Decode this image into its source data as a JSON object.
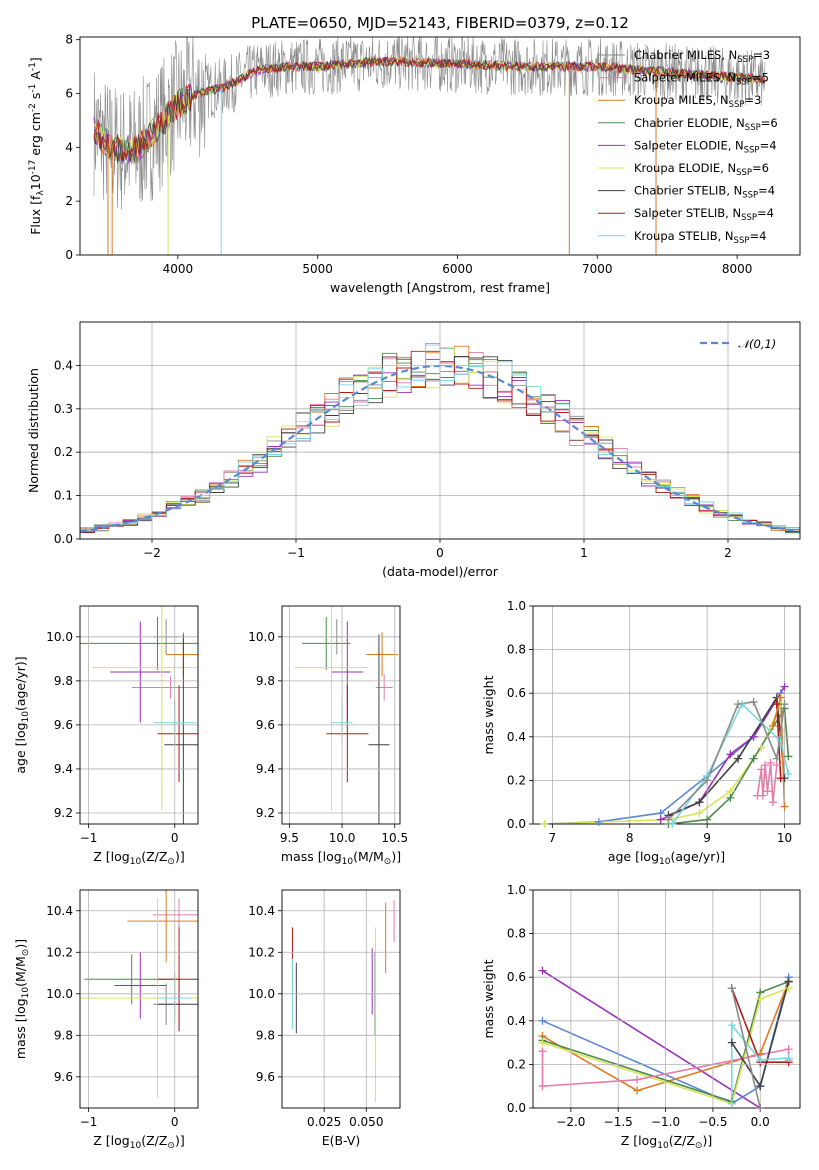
{
  "figure": {
    "title": "PLATE=0650, MJD=52143, FIBERID=0379, z=0.12"
  },
  "colors": {
    "chabrier_miles": "#8a8a8a",
    "salpeter_miles": "#e87ba8",
    "kroupa_miles": "#e07a1f",
    "chabrier_elodie": "#4c8a4c",
    "salpeter_elodie": "#9b30b8",
    "kroupa_elodie": "#d8e55a",
    "chabrier_stelib": "#404040",
    "salpeter_stelib": "#b01a1a",
    "kroupa_stelib": "#7ad8e0",
    "gaussian": "#5b87d8"
  },
  "chart_data": [
    {
      "id": "spectrum",
      "type": "line",
      "xlabel": "wavelength [Angstrom, rest frame]",
      "ylabel": "Flux [f$_\\lambda$10$^{-17}$ erg cm$^{-2}$ s$^{-1}$ A$^{-1}$]",
      "xlim": [
        3300,
        8450
      ],
      "ylim": [
        0,
        8.1
      ],
      "xticks": [
        "4000",
        "5000",
        "6000",
        "7000",
        "8000"
      ],
      "yticks": [
        "0",
        "2",
        "4",
        "6",
        "8"
      ],
      "legend_position": "right",
      "legend": [
        {
          "key": "chabrier_miles",
          "text": "Chabrier MILES, N",
          "sub": "SSP",
          "tail": "=3"
        },
        {
          "key": "salpeter_miles",
          "text": "Salpeter MILES, N",
          "sub": "SSP",
          "tail": "=5"
        },
        {
          "key": "kroupa_miles",
          "text": "Kroupa MILES, N",
          "sub": "SSP",
          "tail": "=3"
        },
        {
          "key": "chabrier_elodie",
          "text": "Chabrier ELODIE, N",
          "sub": "SSP",
          "tail": "=6"
        },
        {
          "key": "salpeter_elodie",
          "text": "Salpeter ELODIE, N",
          "sub": "SSP",
          "tail": "=4"
        },
        {
          "key": "kroupa_elodie",
          "text": "Kroupa ELODIE, N",
          "sub": "SSP",
          "tail": "=6"
        },
        {
          "key": "chabrier_stelib",
          "text": "Chabrier STELIB, N",
          "sub": "SSP",
          "tail": "=4"
        },
        {
          "key": "salpeter_stelib",
          "text": "Salpeter STELIB, N",
          "sub": "SSP",
          "tail": "=4"
        },
        {
          "key": "kroupa_stelib",
          "text": "Kroupa STELIB, N",
          "sub": "SSP",
          "tail": "=4"
        }
      ],
      "continuum": [
        [
          3400,
          4.7
        ],
        [
          3500,
          4.1
        ],
        [
          3600,
          3.9
        ],
        [
          3700,
          3.9
        ],
        [
          3800,
          4.4
        ],
        [
          3900,
          5.0
        ],
        [
          4000,
          5.6
        ],
        [
          4100,
          5.9
        ],
        [
          4200,
          6.1
        ],
        [
          4300,
          6.2
        ],
        [
          4400,
          6.4
        ],
        [
          4500,
          6.7
        ],
        [
          4600,
          6.9
        ],
        [
          4800,
          7.0
        ],
        [
          5000,
          7.0
        ],
        [
          5200,
          7.1
        ],
        [
          5500,
          7.2
        ],
        [
          6000,
          7.1
        ],
        [
          6500,
          7.0
        ],
        [
          7000,
          7.0
        ],
        [
          7500,
          6.8
        ],
        [
          8000,
          6.6
        ],
        [
          8200,
          6.5
        ]
      ],
      "dips": [
        [
          3500,
          0
        ],
        [
          3530,
          0
        ],
        [
          3930,
          0
        ],
        [
          4310,
          0
        ],
        [
          6800,
          0
        ],
        [
          7420,
          0
        ]
      ]
    },
    {
      "id": "residuals",
      "type": "bar",
      "xlabel": "(data-model)/error",
      "ylabel": "Normed distribution",
      "xlim": [
        -2.5,
        2.5
      ],
      "ylim": [
        0,
        0.5
      ],
      "xticks": [
        "−2",
        "−1",
        "0",
        "1",
        "2"
      ],
      "yticks": [
        "0.0",
        "0.1",
        "0.2",
        "0.3",
        "0.4"
      ],
      "legend_position": "top-right",
      "legend_label": "$\\mathcal{N}(0,1)$",
      "bin_width": 0.1
    },
    {
      "id": "age_vs_Z",
      "type": "scatter",
      "xlabel": "Z [log$_{10}$(Z/Z$_\\odot$)]",
      "ylabel": "age  [log$_{10}$(age/yr)]",
      "xlim": [
        -1.1,
        0.27
      ],
      "ylim": [
        9.15,
        10.14
      ],
      "xticks": [
        "−1",
        "0"
      ],
      "yticks": [
        "9.2",
        "9.4",
        "9.6",
        "9.8",
        "10.0"
      ],
      "points": [
        {
          "key": "chabrier_miles",
          "x": -0.1,
          "y": 10.0,
          "xerr": 0.15,
          "yerr": 0.08
        },
        {
          "key": "salpeter_miles",
          "x": -0.05,
          "y": 9.77,
          "xerr": 0.45,
          "yerr": 0.05
        },
        {
          "key": "kroupa_miles",
          "x": 0.1,
          "y": 9.92,
          "xerr": 0.2,
          "yerr": 0.1
        },
        {
          "key": "chabrier_elodie",
          "x": -0.2,
          "y": 9.97,
          "xerr": 0.95,
          "yerr": 0.12
        },
        {
          "key": "salpeter_elodie",
          "x": -0.4,
          "y": 9.84,
          "xerr": 0.35,
          "yerr": 0.23
        },
        {
          "key": "kroupa_elodie",
          "x": -0.15,
          "y": 9.86,
          "xerr": 0.8,
          "yerr": 0.65
        },
        {
          "key": "chabrier_stelib",
          "x": 0.1,
          "y": 9.51,
          "xerr": 0.22,
          "yerr": 0.5
        },
        {
          "key": "salpeter_stelib",
          "x": 0.05,
          "y": 9.56,
          "xerr": 0.25,
          "yerr": 0.22
        },
        {
          "key": "kroupa_stelib",
          "x": 0.0,
          "y": 9.61,
          "xerr": 0.25,
          "yerr": 0.1
        }
      ]
    },
    {
      "id": "age_vs_mass",
      "type": "scatter",
      "xlabel": "mass [log$_{10}$(M/M$_\\odot$)]",
      "ylabel": "",
      "xlim": [
        9.43,
        10.55
      ],
      "ylim": [
        9.15,
        10.14
      ],
      "xticks": [
        "9.5",
        "10.0",
        "10.5"
      ],
      "yticks": [
        "9.2",
        "9.4",
        "9.6",
        "9.8",
        "10.0"
      ],
      "points": [
        {
          "key": "chabrier_miles",
          "x": 9.95,
          "y": 10.0,
          "xerr": 0.05,
          "yerr": 0.08
        },
        {
          "key": "salpeter_miles",
          "x": 10.4,
          "y": 9.77,
          "xerr": 0.08,
          "yerr": 0.06
        },
        {
          "key": "kroupa_miles",
          "x": 10.38,
          "y": 9.92,
          "xerr": 0.15,
          "yerr": 0.1
        },
        {
          "key": "chabrier_elodie",
          "x": 9.85,
          "y": 9.97,
          "xerr": 0.23,
          "yerr": 0.12
        },
        {
          "key": "salpeter_elodie",
          "x": 10.05,
          "y": 9.84,
          "xerr": 0.15,
          "yerr": 0.23
        },
        {
          "key": "kroupa_elodie",
          "x": 9.9,
          "y": 9.86,
          "xerr": 0.35,
          "yerr": 0.65
        },
        {
          "key": "chabrier_stelib",
          "x": 10.35,
          "y": 9.51,
          "xerr": 0.1,
          "yerr": 0.5
        },
        {
          "key": "salpeter_stelib",
          "x": 10.05,
          "y": 9.56,
          "xerr": 0.2,
          "yerr": 0.22
        },
        {
          "key": "kroupa_stelib",
          "x": 10.0,
          "y": 9.61,
          "xerr": 0.1,
          "yerr": 0.1
        }
      ]
    },
    {
      "id": "mass_weight_vs_age",
      "type": "line",
      "xlabel": "age  [log$_{10}$(age/yr)]",
      "ylabel": "mass weight",
      "xlim": [
        6.75,
        10.2
      ],
      "ylim": [
        0,
        1.0
      ],
      "xticks": [
        "7",
        "8",
        "9",
        "10"
      ],
      "yticks": [
        "0.0",
        "0.2",
        "0.4",
        "0.6",
        "0.8",
        "1.0"
      ],
      "series": [
        {
          "key": "gaussian",
          "x": [
            6.9,
            7.6,
            8.4,
            9.0,
            9.6,
            9.95
          ],
          "y": [
            0.0,
            0.01,
            0.05,
            0.22,
            0.4,
            0.6
          ]
        },
        {
          "key": "kroupa_elodie",
          "x": [
            6.9,
            8.5,
            8.9,
            9.3,
            9.7,
            9.95
          ],
          "y": [
            0.0,
            0.02,
            0.05,
            0.15,
            0.35,
            0.55
          ]
        },
        {
          "key": "salpeter_elodie",
          "x": [
            8.4,
            8.9,
            9.3,
            9.6,
            10.0
          ],
          "y": [
            0.02,
            0.1,
            0.32,
            0.4,
            0.63
          ]
        },
        {
          "key": "chabrier_elodie",
          "x": [
            8.5,
            9.0,
            9.3,
            9.6,
            10.0,
            10.05
          ],
          "y": [
            0.0,
            0.02,
            0.12,
            0.3,
            0.53,
            0.31
          ]
        },
        {
          "key": "chabrier_stelib",
          "x": [
            8.5,
            8.9,
            9.4,
            9.9,
            10.0
          ],
          "y": [
            0.04,
            0.1,
            0.3,
            0.58,
            0.21
          ]
        },
        {
          "key": "salpeter_stelib",
          "x": [
            9.9,
            9.95
          ],
          "y": [
            0.55,
            0.21
          ]
        },
        {
          "key": "kroupa_miles",
          "x": [
            9.85,
            9.95,
            10.0
          ],
          "y": [
            0.45,
            0.58,
            0.08
          ]
        },
        {
          "key": "kroupa_stelib",
          "x": [
            8.55,
            9.0,
            9.45,
            9.95,
            10.05
          ],
          "y": [
            0.0,
            0.22,
            0.55,
            0.38,
            0.23
          ]
        },
        {
          "key": "chabrier_miles",
          "x": [
            8.5,
            9.0,
            9.4,
            9.6,
            9.9,
            10.0
          ],
          "y": [
            0.02,
            0.2,
            0.55,
            0.56,
            0.3,
            0.55
          ]
        },
        {
          "key": "salpeter_miles",
          "x": [
            9.65,
            9.7,
            9.72,
            9.75,
            9.78,
            9.82,
            9.85,
            9.9
          ],
          "y": [
            0.13,
            0.25,
            0.13,
            0.27,
            0.15,
            0.28,
            0.1,
            0.27
          ]
        }
      ]
    },
    {
      "id": "mass_vs_Z",
      "type": "scatter",
      "xlabel": "Z [log$_{10}$(Z/Z$_\\odot$)]",
      "ylabel": "mass [log$_{10}$(M/M$_\\odot$)]",
      "xlim": [
        -1.1,
        0.27
      ],
      "ylim": [
        9.45,
        10.5
      ],
      "xticks": [
        "−1",
        "0"
      ],
      "yticks": [
        "9.6",
        "9.8",
        "10.0",
        "10.2",
        "10.4"
      ],
      "points": [
        {
          "key": "chabrier_miles",
          "x": -0.1,
          "y": 9.95,
          "xerr": 0.15,
          "yerr": 0.1
        },
        {
          "key": "salpeter_miles",
          "x": 0.05,
          "y": 10.38,
          "xerr": 0.3,
          "yerr": 0.08
        },
        {
          "key": "kroupa_miles",
          "x": -0.1,
          "y": 10.35,
          "xerr": 0.45,
          "yerr": 0.2
        },
        {
          "key": "chabrier_elodie",
          "x": -0.5,
          "y": 10.07,
          "xerr": 0.55,
          "yerr": 0.12
        },
        {
          "key": "salpeter_elodie",
          "x": -0.4,
          "y": 10.04,
          "xerr": 0.3,
          "yerr": 0.16
        },
        {
          "key": "kroupa_elodie",
          "x": -0.2,
          "y": 9.98,
          "xerr": 0.9,
          "yerr": 0.48
        },
        {
          "key": "chabrier_stelib",
          "x": 0.05,
          "y": 9.95,
          "xerr": 0.25,
          "yerr": 0.13
        },
        {
          "key": "salpeter_stelib",
          "x": 0.05,
          "y": 10.07,
          "xerr": 0.25,
          "yerr": 0.25
        },
        {
          "key": "kroupa_stelib",
          "x": 0.0,
          "y": 9.98,
          "xerr": 0.2,
          "yerr": 0.12
        }
      ]
    },
    {
      "id": "mass_vs_ebv",
      "type": "scatter",
      "xlabel": "E(B-V)",
      "ylabel": "",
      "xlim": [
        0.0,
        0.07
      ],
      "ylim": [
        9.45,
        10.5
      ],
      "xticks": [
        "0.025",
        "0.050"
      ],
      "yticks": [
        "9.6",
        "9.8",
        "10.0",
        "10.2",
        "10.4"
      ],
      "points": [
        {
          "key": "chabrier_miles",
          "x": 0.0062,
          "y": 9.95,
          "xerr": 0,
          "yerr": 0.1
        },
        {
          "key": "salpeter_miles",
          "x": 0.0665,
          "y": 10.35,
          "xerr": 0,
          "yerr": 0.1
        },
        {
          "key": "kroupa_miles",
          "x": 0.0615,
          "y": 10.27,
          "xerr": 0,
          "yerr": 0.17
        },
        {
          "key": "chabrier_elodie",
          "x": 0.0552,
          "y": 10.0,
          "xerr": 0,
          "yerr": 0.2
        },
        {
          "key": "salpeter_elodie",
          "x": 0.0535,
          "y": 10.06,
          "xerr": 0,
          "yerr": 0.16
        },
        {
          "key": "kroupa_elodie",
          "x": 0.0555,
          "y": 9.9,
          "xerr": 0,
          "yerr": 0.42
        },
        {
          "key": "chabrier_stelib",
          "x": 0.0085,
          "y": 9.98,
          "xerr": 0,
          "yerr": 0.17
        },
        {
          "key": "salpeter_stelib",
          "x": 0.0062,
          "y": 10.18,
          "xerr": 0,
          "yerr": 0.14
        },
        {
          "key": "kroupa_stelib",
          "x": 0.0062,
          "y": 10.0,
          "xerr": 0,
          "yerr": 0.17
        }
      ]
    },
    {
      "id": "mass_weight_vs_Z",
      "type": "line",
      "xlabel": "Z [log$_{10}$(Z/Z$_\\odot$)]",
      "ylabel": "mass weight",
      "xlim": [
        -2.4,
        0.42
      ],
      "ylim": [
        0,
        1.0
      ],
      "xticks": [
        "−2.0",
        "−1.5",
        "−1.0",
        "−0.5",
        "0.0"
      ],
      "yticks": [
        "0.0",
        "0.2",
        "0.4",
        "0.6",
        "0.8",
        "1.0"
      ],
      "series": [
        {
          "key": "salpeter_elodie",
          "x": [
            -2.3,
            0.0
          ],
          "y": [
            0.63,
            0.0
          ]
        },
        {
          "key": "gaussian",
          "x": [
            -2.3,
            -0.3,
            0.0,
            0.3
          ],
          "y": [
            0.4,
            0.02,
            0.1,
            0.6
          ]
        },
        {
          "key": "kroupa_miles",
          "x": [
            -2.3,
            -1.3,
            0.0,
            0.3
          ],
          "y": [
            0.33,
            0.08,
            0.25,
            0.58
          ]
        },
        {
          "key": "chabrier_elodie",
          "x": [
            -2.3,
            -0.3,
            0.0,
            0.3
          ],
          "y": [
            0.31,
            0.03,
            0.53,
            0.58
          ]
        },
        {
          "key": "kroupa_elodie",
          "x": [
            -2.3,
            -0.3,
            0.0,
            0.3
          ],
          "y": [
            0.3,
            0.02,
            0.5,
            0.55
          ]
        },
        {
          "key": "salpeter_miles",
          "x": [
            -2.3,
            -2.3,
            -1.3,
            0.3,
            0.3
          ],
          "y": [
            0.26,
            0.1,
            0.13,
            0.27,
            0.22
          ]
        },
        {
          "key": "chabrier_stelib",
          "x": [
            -0.3,
            0.0,
            0.3
          ],
          "y": [
            0.3,
            0.1,
            0.58
          ]
        },
        {
          "key": "salpeter_stelib",
          "x": [
            -0.3,
            0.0,
            0.3
          ],
          "y": [
            0.55,
            0.21,
            0.21
          ]
        },
        {
          "key": "kroupa_stelib",
          "x": [
            -0.3,
            -0.3,
            0.0,
            0.3
          ],
          "y": [
            0.02,
            0.38,
            0.22,
            0.23
          ]
        },
        {
          "key": "chabrier_miles",
          "x": [
            -0.3,
            0.0
          ],
          "y": [
            0.55,
            0.0
          ]
        }
      ]
    }
  ]
}
